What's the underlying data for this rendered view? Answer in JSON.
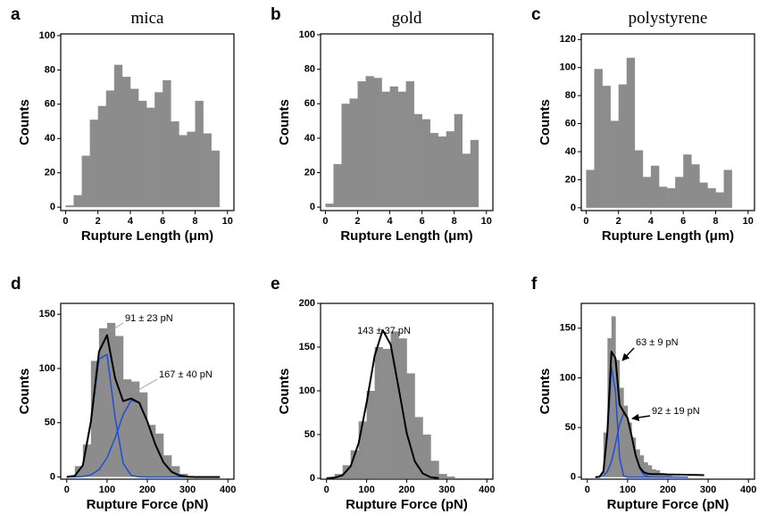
{
  "chart_data": [
    {
      "type": "histogram",
      "panel": "a",
      "title": "mica",
      "xlabel": "Rupture Length  (μm)",
      "ylabel": "Counts",
      "color": "#8c8c8c",
      "bins": [
        0,
        0.5,
        1,
        1.5,
        2,
        2.5,
        3,
        3.5,
        4,
        4.5,
        5,
        5.5,
        6,
        6.5,
        7,
        7.5,
        8,
        8.5,
        9,
        9.5
      ],
      "values": [
        1,
        7,
        30,
        51,
        59,
        68,
        83,
        76,
        69,
        62,
        58,
        67,
        74,
        50,
        42,
        44,
        62,
        43,
        33
      ],
      "xlim": [
        -0.3,
        10.4
      ],
      "ylim": [
        -2,
        101
      ],
      "xticks": [
        0,
        2,
        4,
        6,
        8,
        10
      ],
      "yticks": [
        0,
        20,
        40,
        60,
        80,
        100
      ],
      "lines": [],
      "annotations": []
    },
    {
      "type": "histogram",
      "panel": "b",
      "title": "gold",
      "xlabel": "Rupture Length (μm)",
      "ylabel": "Counts",
      "color": "#8c8c8c",
      "bins": [
        0,
        0.5,
        1,
        1.5,
        2,
        2.5,
        3,
        3.5,
        4,
        4.5,
        5,
        5.5,
        6,
        6.5,
        7,
        7.5,
        8,
        8.5,
        9,
        9.5
      ],
      "values": [
        2,
        25,
        60,
        63,
        73,
        76,
        75,
        67,
        70,
        67,
        73,
        54,
        51,
        43,
        41,
        44,
        54,
        31,
        39
      ],
      "xlim": [
        -0.3,
        10.4
      ],
      "ylim": [
        -2,
        100.5
      ],
      "xticks": [
        0,
        2,
        4,
        6,
        8,
        10
      ],
      "yticks": [
        0,
        20,
        40,
        60,
        80,
        100
      ],
      "lines": [],
      "annotations": []
    },
    {
      "type": "histogram",
      "panel": "c",
      "title": "polystyrene",
      "xlabel": "Rupture Length (μm)",
      "ylabel": "Counts",
      "color": "#8c8c8c",
      "bins": [
        0,
        0.5,
        1,
        1.5,
        2,
        2.5,
        3,
        3.5,
        4,
        4.5,
        5,
        5.5,
        6,
        6.5,
        7,
        7.5,
        8,
        8.5,
        9
      ],
      "values": [
        27,
        99,
        87,
        62,
        88,
        107,
        41,
        22,
        30,
        15,
        14,
        22,
        38,
        31,
        18,
        14,
        11,
        27
      ],
      "xlim": [
        -0.3,
        10.4
      ],
      "ylim": [
        -2,
        124
      ],
      "xticks": [
        0,
        2,
        4,
        6,
        8,
        10
      ],
      "yticks": [
        0,
        20,
        40,
        60,
        80,
        100,
        120
      ],
      "lines": [],
      "annotations": []
    },
    {
      "type": "histogram",
      "panel": "d",
      "xlabel": "Rupture Force (pN)",
      "ylabel": "Counts",
      "color": "#8c8c8c",
      "bins": [
        20,
        40,
        60,
        80,
        100,
        120,
        140,
        160,
        180,
        200,
        220,
        240,
        260,
        280,
        300
      ],
      "values": [
        10,
        30,
        107,
        137,
        142,
        130,
        90,
        88,
        78,
        48,
        40,
        20,
        10,
        3
      ],
      "xlim": [
        -15,
        415
      ],
      "ylim": [
        -2,
        160
      ],
      "xticks": [
        0,
        100,
        200,
        300,
        400
      ],
      "yticks": [
        0,
        50,
        100,
        150
      ],
      "lines": [
        {
          "color": "#1f4fd0",
          "x": [
            0,
            20,
            40,
            60,
            80,
            100,
            120,
            140,
            160,
            180,
            200,
            220,
            240,
            260,
            280,
            300,
            320,
            340,
            360,
            380
          ],
          "values": [
            0,
            1,
            10.4,
            49.2,
            108.8,
            113,
            55.1,
            12.6,
            1.4,
            0.1,
            0,
            0,
            0,
            0,
            0,
            0,
            0,
            0,
            0,
            0
          ]
        },
        {
          "color": "#1f4fd0",
          "x": [
            0,
            20,
            40,
            60,
            80,
            100,
            120,
            140,
            160,
            180,
            200,
            220,
            240,
            260,
            280,
            300,
            320,
            340,
            360,
            380
          ],
          "values": [
            0,
            0.1,
            0.5,
            2,
            6.8,
            17.7,
            36.1,
            57.3,
            70.9,
            68.3,
            51.2,
            29.9,
            13.6,
            4.8,
            1.3,
            0.3,
            0,
            0,
            0,
            0
          ]
        },
        {
          "color": "#000000",
          "x": [
            0,
            20,
            40,
            60,
            80,
            100,
            120,
            140,
            160,
            180,
            200,
            220,
            240,
            260,
            280,
            300,
            320,
            340,
            360,
            380
          ],
          "values": [
            0.1,
            1.1,
            10.9,
            51.2,
            115.6,
            130.7,
            91.2,
            69.9,
            72.3,
            68.4,
            51.2,
            29.9,
            13.6,
            4.8,
            1.3,
            0.3,
            0,
            0,
            0,
            0
          ]
        }
      ],
      "annotations": [
        "91 ± 23 pN",
        "167 ± 40 pN"
      ]
    },
    {
      "type": "histogram",
      "panel": "e",
      "xlabel": "Rupture Force (pN)",
      "ylabel": "Counts",
      "color": "#8c8c8c",
      "bins": [
        20,
        40,
        60,
        80,
        100,
        120,
        140,
        160,
        180,
        200,
        220,
        240,
        260,
        280,
        300,
        320
      ],
      "values": [
        5,
        15,
        32,
        65,
        100,
        150,
        148,
        168,
        160,
        120,
        70,
        50,
        20,
        5,
        2
      ],
      "xlim": [
        -15,
        415
      ],
      "ylim": [
        -1,
        200
      ],
      "xticks": [
        0,
        100,
        200,
        300,
        400
      ],
      "yticks": [
        0,
        50,
        100,
        150,
        200
      ],
      "lines": [
        {
          "color": "#000000",
          "x": [
            0,
            20,
            40,
            60,
            80,
            100,
            120,
            140,
            160,
            180,
            200,
            220,
            240,
            260,
            280
          ],
          "values": [
            0.1,
            0.7,
            3.5,
            13.7,
            39.9,
            86.5,
            140.1,
            169.5,
            153,
            103.1,
            51.8,
            19.5,
            5.5,
            1.1,
            0.2
          ]
        }
      ],
      "annotations": [
        "143 ± 37 pN"
      ]
    },
    {
      "type": "histogram",
      "panel": "f",
      "xlabel": "Rupture Force (pN)",
      "ylabel": "Counts",
      "color": "#8c8c8c",
      "bins": [
        40,
        50,
        60,
        70,
        80,
        90,
        100,
        110,
        120,
        130,
        140,
        150,
        160,
        170,
        180,
        190,
        200,
        210,
        220,
        230
      ],
      "values": [
        45,
        140,
        162,
        118,
        90,
        72,
        55,
        40,
        28,
        22,
        15,
        12,
        8,
        7,
        4,
        3,
        2,
        1,
        1
      ],
      "xlim": [
        -15,
        415
      ],
      "ylim": [
        -2,
        175
      ],
      "xticks": [
        0,
        100,
        200,
        300,
        400
      ],
      "yticks": [
        0,
        50,
        100,
        150
      ],
      "lines": [
        {
          "color": "#1f4fd0",
          "x": [
            20,
            30,
            40,
            50,
            60,
            70,
            80,
            90,
            100,
            110,
            120,
            130,
            140,
            150,
            160,
            170,
            180,
            190,
            200,
            210,
            220,
            230,
            240,
            250
          ],
          "values": [
            0,
            0.1,
            4.4,
            41.3,
            110.7,
            86.5,
            19.7,
            1.3,
            0,
            0,
            0,
            0,
            0,
            0,
            0,
            0,
            0,
            0,
            0,
            0,
            0,
            0,
            0,
            0
          ]
        },
        {
          "color": "#1f4fd0",
          "x": [
            20,
            30,
            40,
            50,
            60,
            70,
            80,
            90,
            100,
            110,
            120,
            130,
            140,
            150,
            160,
            170,
            180,
            190,
            200,
            210,
            220,
            230,
            240,
            250
          ],
          "values": [
            0.1,
            0.3,
            1.5,
            5.7,
            15.7,
            33.3,
            53.2,
            64.6,
            59.5,
            41.5,
            21.9,
            8.8,
            2.7,
            0.6,
            0.1,
            0,
            0,
            0,
            0,
            0,
            0,
            0,
            0,
            0
          ]
        },
        {
          "color": "#000000",
          "x": [
            20,
            30,
            40,
            50,
            60,
            70,
            80,
            90,
            100,
            110,
            120,
            130,
            140,
            150,
            160,
            170,
            180,
            190,
            200,
            210,
            220,
            230,
            240,
            250,
            260,
            270,
            280,
            290
          ],
          "values": [
            0.1,
            0.4,
            5.9,
            47,
            126.4,
            119.8,
            72.9,
            65.9,
            59.5,
            41.5,
            22,
            10,
            5,
            3.5,
            3,
            3,
            3,
            3,
            2.8,
            2.8,
            2.6,
            2.6,
            2.5,
            2.4,
            2.3,
            2.2,
            2.1,
            2
          ]
        }
      ],
      "annotations": [
        "63 ± 9 pN",
        "92 ± 19 pN"
      ]
    }
  ]
}
